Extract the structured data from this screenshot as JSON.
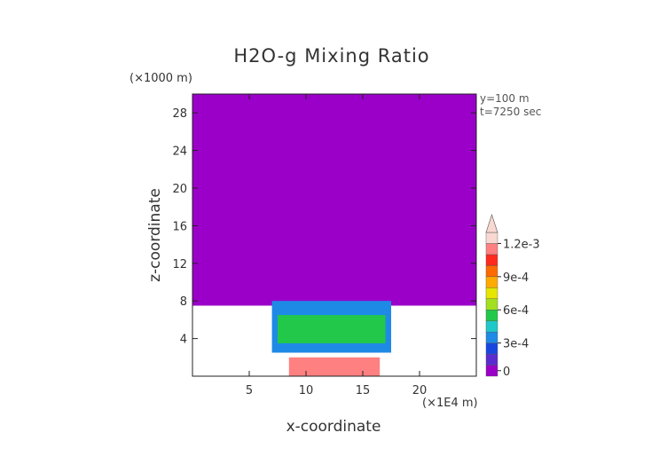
{
  "chart_data": {
    "type": "heatmap",
    "title": "H2O-g Mixing Ratio",
    "xlabel": "x-coordinate",
    "ylabel": "z-coordinate",
    "x_unit": "(×1E4 m)",
    "y_unit": "(×1000 m)",
    "annotations": [
      "y=100 m",
      "t=7250 sec"
    ],
    "xlim": [
      0,
      25
    ],
    "ylim": [
      0,
      30
    ],
    "x_ticks": [
      5,
      10,
      15,
      20
    ],
    "x_tick_labels": [
      "5",
      "10",
      "15",
      "20"
    ],
    "y_ticks": [
      4,
      8,
      12,
      16,
      20,
      24,
      28
    ],
    "y_tick_labels": [
      "4",
      "8",
      "12",
      "16",
      "20",
      "24",
      "28"
    ],
    "colorbar": {
      "levels": [
        0,
        0.0001,
        0.0002,
        0.0003,
        0.0004,
        0.0005,
        0.0006,
        0.0007,
        0.0008,
        0.0009,
        0.001,
        0.0011,
        0.0012
      ],
      "tick_values": [
        0,
        0.0003,
        0.0006,
        0.0009,
        0.0012
      ],
      "tick_labels": [
        "0",
        "3e-4",
        "6e-4",
        "9e-4",
        "1.2e-3"
      ],
      "colors": [
        "#9a00c8",
        "#5a2cd0",
        "#1a46e0",
        "#1e8ae6",
        "#1ec8c8",
        "#22c84a",
        "#a2e020",
        "#e6e600",
        "#ffaa00",
        "#ff6a00",
        "#ff2a1e",
        "#ff8080",
        "#f8d8d0"
      ],
      "extend": "max"
    },
    "regions": [
      {
        "level_index": 0,
        "description_value": 5e-05,
        "x_range": [
          0,
          25
        ],
        "z_range": [
          7.5,
          30
        ]
      },
      {
        "level_index": 3,
        "description_value": 0.0003,
        "x_range": [
          7,
          17.5
        ],
        "z_range": [
          2.5,
          8
        ]
      },
      {
        "level_index": 5,
        "description_value": 0.0005,
        "x_range": [
          7.5,
          17
        ],
        "z_range": [
          3.5,
          6.5
        ]
      },
      {
        "level_index": 11,
        "description_value": 0.0011,
        "x_range": [
          8.5,
          16.5
        ],
        "z_range": [
          0,
          2
        ]
      }
    ]
  }
}
